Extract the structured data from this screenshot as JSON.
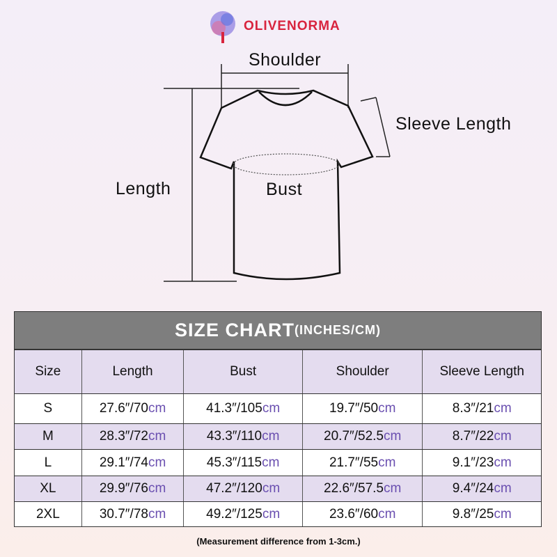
{
  "brand": {
    "name": "OLIVENORMA"
  },
  "diagram": {
    "shoulder": "Shoulder",
    "sleeve": "Sleeve Length",
    "length": "Length",
    "bust": "Bust"
  },
  "table": {
    "title": "SIZE CHART",
    "title_unit": "(INCHES/CM)",
    "headers": [
      "Size",
      "Length",
      "Bust",
      "Shoulder",
      "Sleeve Length"
    ],
    "unit_suffix": "cm",
    "rows": [
      [
        "S",
        "27.6″/70",
        "41.3″/105",
        "19.7″/50",
        "8.3″/21"
      ],
      [
        "M",
        "28.3″/72",
        "43.3″/110",
        "20.7″/52.5",
        "8.7″/22"
      ],
      [
        "L",
        "29.1″/74",
        "45.3″/115",
        "21.7″/55",
        "9.1″/23"
      ],
      [
        "XL",
        "29.9″/76",
        "47.2″/120",
        "22.6″/57.5",
        "9.4″/24"
      ],
      [
        "2XL",
        "30.7″/78",
        "49.2″/125",
        "23.6″/60",
        "9.8″/25"
      ]
    ]
  },
  "note": "(Measurement difference from 1-3cm.)",
  "colors": {
    "brand": "#d8243e",
    "header_bar": "#7e7e7e",
    "row_tint": "#e4dcef",
    "cm": "#6a4fb0"
  }
}
